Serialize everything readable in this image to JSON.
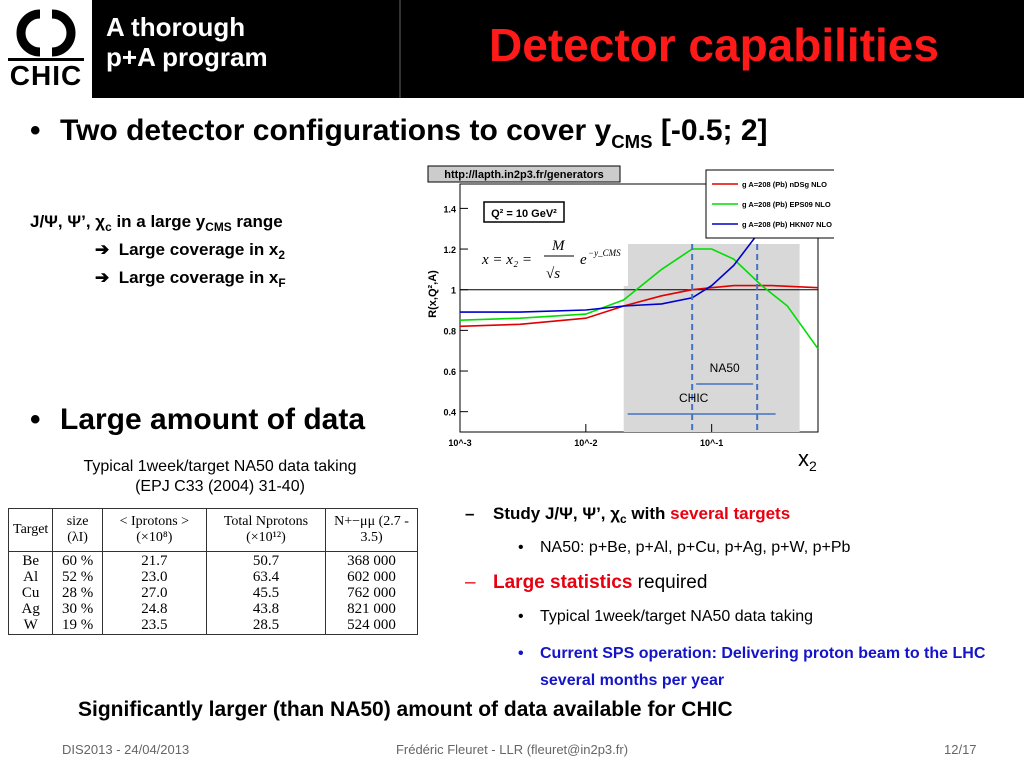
{
  "header": {
    "logo_text": "CHIC",
    "subtitle_line1": "A thorough",
    "subtitle_line2": "p+A program",
    "title": "Detector capabilities"
  },
  "bullet1": {
    "text": "Two detector configurations to cover y",
    "sub": "CMS",
    "tail": " [-0.5; 2]"
  },
  "jpsi": {
    "line_pre": "J/Ψ, Ψ’, χ",
    "line_sub_c": "c",
    "line_mid": " in a large y",
    "line_sub_cms": "CMS",
    "line_tail": " range",
    "items": [
      {
        "text": "Large coverage in x",
        "sub": "2"
      },
      {
        "text": "Large coverage in x",
        "sub": "F"
      }
    ]
  },
  "bullet2": {
    "text": "Large amount of data"
  },
  "chart": {
    "url_label": "http://lapth.in2p3.fr/generators",
    "q2_label": "Q² = 10 GeV²",
    "ylabel": "R(x,Q²,A)",
    "xlabel_main": "x",
    "xlabel_sub": "2",
    "formula": "x = x₂ = M/√s · e^(−y_CMS)",
    "na50_label": "NA50",
    "chic_label": "CHIC",
    "legend": [
      {
        "label": "g  A=208 (Pb) nDSg NLO",
        "color": "#e00000"
      },
      {
        "label": "g  A=208 (Pb) EPS09 NLO",
        "color": "#00dd00"
      },
      {
        "label": "g  A=208 (Pb) HKN07 NLO",
        "color": "#0000cc"
      }
    ]
  },
  "chart_data": {
    "type": "line",
    "xlabel": "x2",
    "ylabel": "R(x,Q²,A)",
    "xscale": "log",
    "xlim": [
      0.001,
      0.7
    ],
    "ylim": [
      0.3,
      1.52
    ],
    "yticks": [
      0.4,
      0.6,
      0.8,
      1,
      1.2,
      1.4
    ],
    "xticks": [
      "10^-3",
      "10^-2",
      "10^-1"
    ],
    "series": [
      {
        "name": "g A=208 (Pb) nDSg NLO",
        "color": "#e00000",
        "x": [
          0.001,
          0.003,
          0.01,
          0.02,
          0.04,
          0.07,
          0.1,
          0.15,
          0.3,
          0.7
        ],
        "y": [
          0.82,
          0.83,
          0.86,
          0.92,
          0.97,
          1.0,
          1.01,
          1.02,
          1.02,
          1.01
        ]
      },
      {
        "name": "g A=208 (Pb) EPS09 NLO",
        "color": "#00dd00",
        "x": [
          0.001,
          0.003,
          0.01,
          0.02,
          0.04,
          0.07,
          0.1,
          0.15,
          0.25,
          0.4,
          0.7
        ],
        "y": [
          0.85,
          0.86,
          0.88,
          0.95,
          1.1,
          1.2,
          1.2,
          1.15,
          1.02,
          0.92,
          0.71
        ]
      },
      {
        "name": "g A=208 (Pb) HKN07 NLO",
        "color": "#0000cc",
        "x": [
          0.001,
          0.003,
          0.01,
          0.02,
          0.04,
          0.07,
          0.1,
          0.15,
          0.25,
          0.4
        ],
        "y": [
          0.89,
          0.89,
          0.9,
          0.92,
          0.93,
          0.96,
          1.02,
          1.12,
          1.3,
          1.5
        ]
      }
    ],
    "bands": [
      {
        "name": "CHIC",
        "x": [
          0.02,
          0.5
        ]
      },
      {
        "name": "NA50",
        "x": [
          0.07,
          0.23
        ]
      }
    ]
  },
  "typical": {
    "line1": "Typical 1week/target NA50 data taking",
    "line2": "(EPJ C33 (2004) 31-40)"
  },
  "table": {
    "headers": [
      "Target",
      "size (λI)",
      "< Iprotons > (×10⁸)",
      "Total Nprotons (×10¹²)",
      "N+−μμ (2.7 - 3.5)"
    ],
    "rows": [
      [
        "Be",
        "60 %",
        "21.7",
        "50.7",
        "368 000"
      ],
      [
        "Al",
        "52 %",
        "23.0",
        "63.4",
        "602 000"
      ],
      [
        "Cu",
        "28 %",
        "27.0",
        "45.5",
        "762 000"
      ],
      [
        "Ag",
        "30 %",
        "24.8",
        "43.8",
        "821 000"
      ],
      [
        "W",
        "19 %",
        "23.5",
        "28.5",
        "524 000"
      ]
    ]
  },
  "right": {
    "item1_pre": "Study J/Ψ, Ψ’, χ",
    "item1_sub": "c",
    "item1_mid": " with ",
    "item1_red": "several targets",
    "sub1": "NA50: p+Be, p+Al, p+Cu, p+Ag, p+W, p+Pb",
    "item2_red": "Large statistics",
    "item2_tail": " required",
    "sub2": "Typical 1week/target NA50 data taking",
    "sub3": "Current SPS operation: Delivering proton beam to the LHC several months per year"
  },
  "bottom": "Significantly larger (than NA50) amount of data available for CHIC",
  "footer": {
    "left": "DIS2013 - 24/04/2013",
    "center": "Frédéric Fleuret - LLR (fleuret@in2p3.fr)",
    "right": "12/17"
  }
}
